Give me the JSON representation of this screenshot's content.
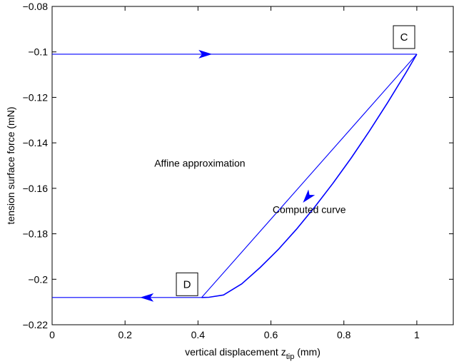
{
  "chart_data": {
    "type": "line",
    "title": "",
    "xlabel": "vertical displacement z",
    "xlabel_subscript": "tip",
    "xlabel_unit": " (mm)",
    "ylabel": "tension surface force (mN)",
    "xlim": [
      0,
      1.1
    ],
    "ylim": [
      -0.22,
      -0.08
    ],
    "xticks": [
      0,
      0.2,
      0.4,
      0.6,
      0.8,
      1
    ],
    "xtick_labels": [
      "0",
      "0.2",
      "0.4",
      "0.6",
      "0.8",
      "1"
    ],
    "yticks": [
      -0.08,
      -0.1,
      -0.12,
      -0.14,
      -0.16,
      -0.18,
      -0.2,
      -0.22
    ],
    "ytick_labels": [
      "−0.08",
      "−0.1",
      "−0.12",
      "−0.14",
      "−0.16",
      "−0.18",
      "−0.2",
      "−0.22"
    ],
    "grid": false,
    "line_color": "#0000ff",
    "series": [
      {
        "x": [
          0,
          1
        ],
        "y": [
          -0.101,
          -0.101
        ]
      },
      {
        "x": [
          1,
          0.41
        ],
        "y": [
          -0.101,
          -0.208
        ]
      },
      {
        "x": [
          1,
          0.97,
          0.92,
          0.87,
          0.82,
          0.77,
          0.72,
          0.67,
          0.62,
          0.57,
          0.52,
          0.47,
          0.43,
          0.41
        ],
        "y": [
          -0.101,
          -0.1092,
          -0.1223,
          -0.1348,
          -0.1467,
          -0.1578,
          -0.1682,
          -0.178,
          -0.1869,
          -0.1949,
          -0.202,
          -0.2069,
          -0.2079,
          -0.208
        ]
      },
      {
        "x": [
          0.41,
          0
        ],
        "y": [
          -0.208,
          -0.208
        ]
      }
    ],
    "arrows": [
      {
        "x": 0.42,
        "y": -0.101,
        "direction": "right"
      },
      {
        "x": 0.7,
        "y": -0.164,
        "direction": "down-left"
      },
      {
        "x": 0.26,
        "y": -0.208,
        "direction": "left"
      }
    ],
    "annotations": [
      {
        "text": "Affine approximation",
        "x": 0.405,
        "y": -0.1505
      },
      {
        "text": "Computed curve",
        "x": 0.705,
        "y": -0.1708
      }
    ],
    "point_labels": [
      {
        "text": "C",
        "x": 0.965,
        "y": -0.0935
      },
      {
        "text": "D",
        "x": 0.37,
        "y": -0.2022
      }
    ]
  }
}
